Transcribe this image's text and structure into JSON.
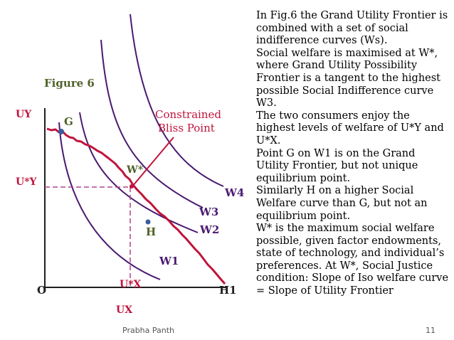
{
  "figure": {
    "title": "Figure 6",
    "axes": {
      "y_label": "UY",
      "y_star_label": "U*Y",
      "origin_label": "O",
      "x_star_label": "U*X",
      "x_label": "UX",
      "x_intercept_label": "H1"
    },
    "points": {
      "g_label": "G",
      "h_label": "H",
      "w_star_label": "W*"
    },
    "annotation": {
      "line1": "Constrained",
      "line2": "Bliss Point"
    },
    "curves": {
      "w1": "W1",
      "w2": "W2",
      "w3": "W3",
      "w4": "W4"
    },
    "colors": {
      "axis": "#1f1f1f",
      "frontier": "#c0143c",
      "indifference": "#4b1a70",
      "reference_lines": "#b0448a",
      "point": "#3a5c9a",
      "label_green": "#4f6228"
    }
  },
  "body_text": [
    "In Fig.6 the  Grand Utility Frontier is",
    "combined with a set of social",
    "indifference curves (Ws).",
    "Social welfare is maximised at W*,",
    "where  Grand Utility Possibility",
    "Frontier is a tangent to the highest",
    "possible Social Indifference curve",
    "W3.",
    "The two consumers enjoy the",
    "highest levels of welfare of U*Y and",
    "U*X.",
    "Point G on W1 is on the Grand",
    "Utility Frontier, but not unique",
    "equilibrium point.",
    "Similarly H on a higher Social",
    "Welfare curve than G, but not an",
    "equilibrium point.",
    "W* is the maximum social welfare",
    "possible, given factor endowments,",
    "state of technology, and individual’s",
    "preferences. At W*, Social Justice",
    "condition: Slope of Iso welfare curve",
    "= Slope of Utility Frontier"
  ],
  "footer": {
    "author": "Prabha Panth",
    "page": "11"
  }
}
